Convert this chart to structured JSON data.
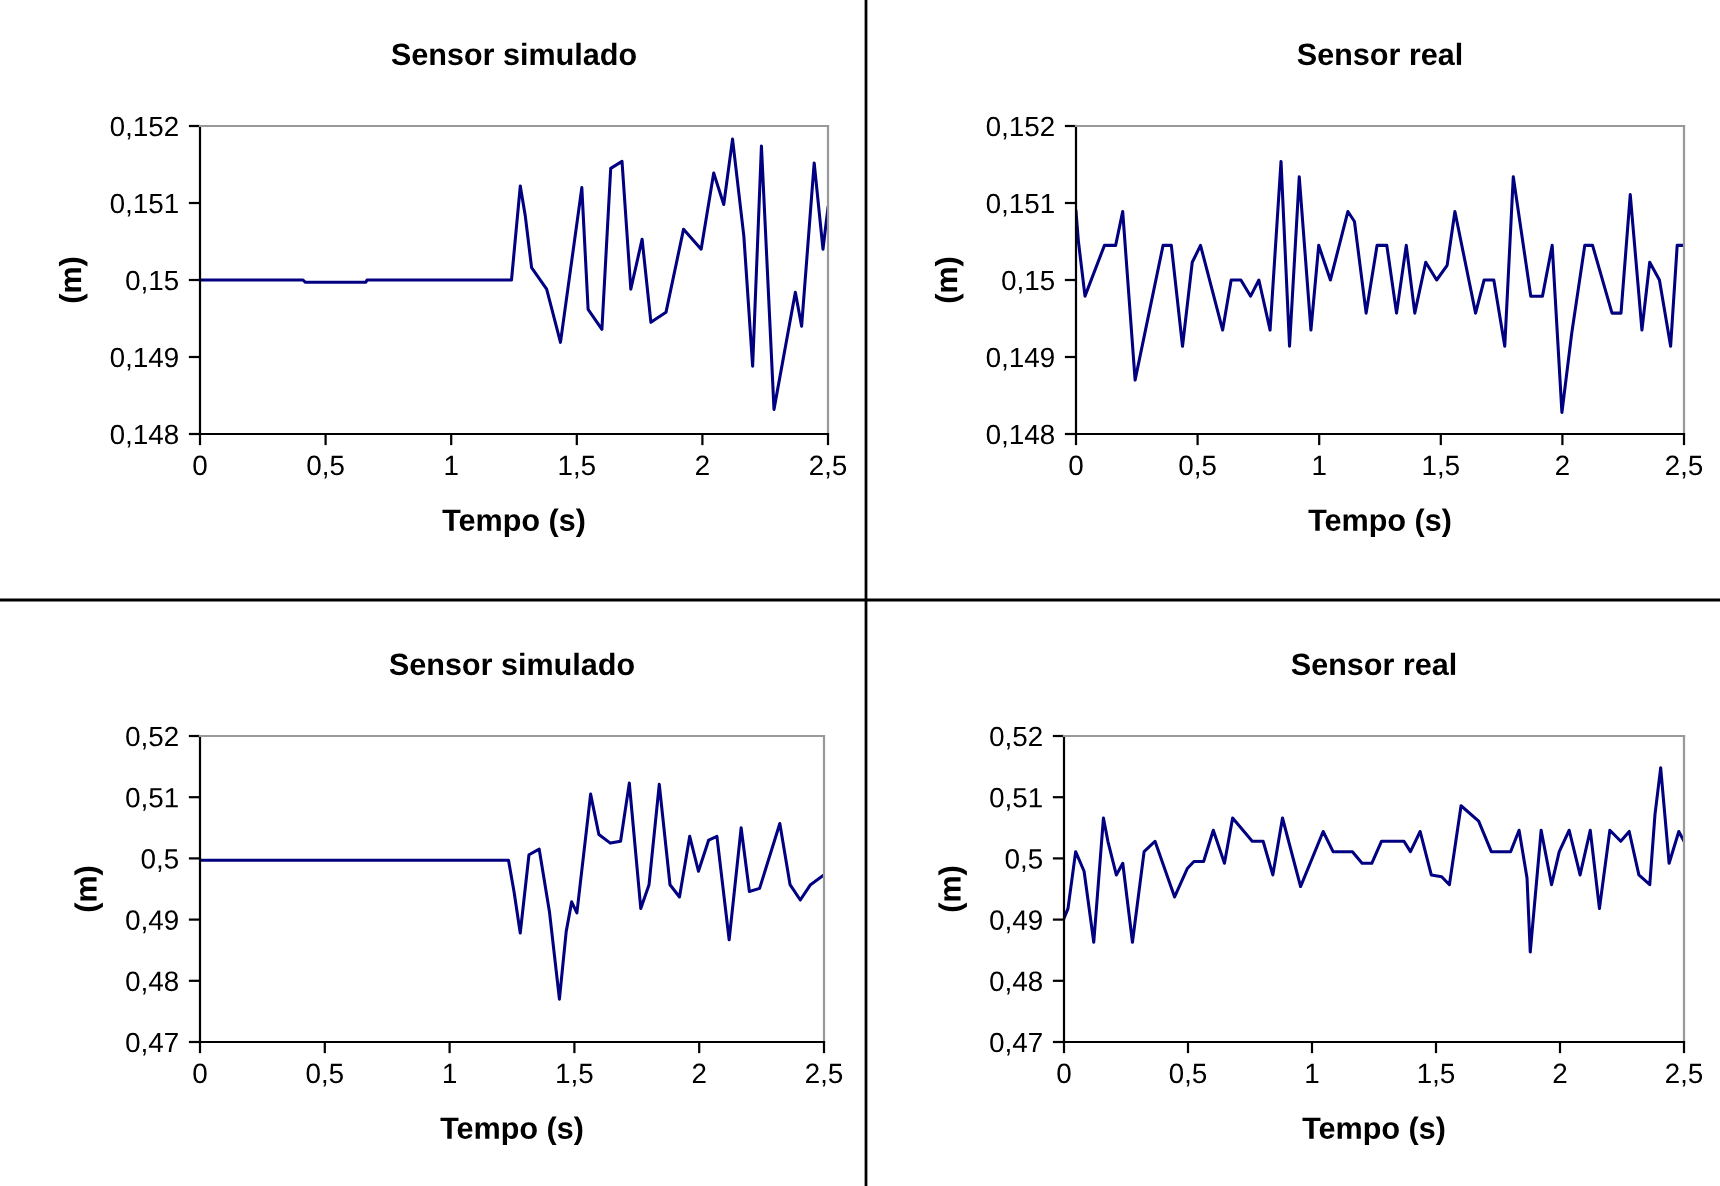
{
  "chart_data": [
    {
      "type": "line",
      "title": "Sensor simulado",
      "xlabel": "Tempo (s)",
      "ylabel": "(m)",
      "color": "#000080",
      "x": [
        0,
        0.41,
        0.42,
        0.66,
        0.665,
        1.24,
        1.275,
        1.295,
        1.32,
        1.38,
        1.435,
        1.52,
        1.545,
        1.6,
        1.635,
        1.68,
        1.715,
        1.76,
        1.795,
        1.855,
        1.925,
        1.995,
        2.045,
        2.085,
        2.12,
        2.165,
        2.2,
        2.235,
        2.285,
        2.37,
        2.395,
        2.445,
        2.48,
        2.5
      ],
      "values": [
        0.15,
        0.15,
        0.14997,
        0.14997,
        0.15,
        0.15,
        0.15122,
        0.15083,
        0.15016,
        0.14988,
        0.14919,
        0.1512,
        0.14962,
        0.14936,
        0.15145,
        0.15154,
        0.14988,
        0.15053,
        0.14945,
        0.14958,
        0.15066,
        0.1504,
        0.15139,
        0.15098,
        0.15183,
        0.15057,
        0.14888,
        0.15174,
        0.14832,
        0.14984,
        0.1494,
        0.15152,
        0.1504,
        0.15094
      ],
      "xlim": [
        0,
        2.5
      ],
      "ylim": [
        0.148,
        0.152
      ],
      "xticks": [
        0,
        {
          "value": 0.5,
          "label": "0,5"
        },
        1,
        {
          "value": 1.5,
          "label": "1,5"
        },
        2,
        {
          "value": 2.5,
          "label": "2,5"
        }
      ],
      "yticks": [
        {
          "value": 0.148,
          "label": "0,148"
        },
        {
          "value": 0.149,
          "label": "0,149"
        },
        {
          "value": 0.15,
          "label": "0,15"
        },
        {
          "value": 0.151,
          "label": "0,151"
        },
        {
          "value": 0.152,
          "label": "0,152"
        }
      ]
    },
    {
      "type": "line",
      "title": "Sensor real",
      "xlabel": "Tempo (s)",
      "ylabel": "(m)",
      "color": "#000080",
      "x": [
        0,
        0.01,
        0.037,
        0.117,
        0.163,
        0.192,
        0.243,
        0.358,
        0.392,
        0.438,
        0.478,
        0.512,
        0.603,
        0.638,
        0.678,
        0.718,
        0.752,
        0.798,
        0.843,
        0.878,
        0.918,
        0.966,
        0.998,
        1.046,
        1.118,
        1.145,
        1.193,
        1.238,
        1.278,
        1.318,
        1.358,
        1.393,
        1.438,
        1.483,
        1.526,
        1.558,
        1.643,
        1.678,
        1.718,
        1.763,
        1.798,
        1.87,
        1.918,
        1.958,
        1.998,
        2.038,
        2.092,
        2.124,
        2.204,
        2.241,
        2.279,
        2.327,
        2.359,
        2.399,
        2.445,
        2.472,
        2.5
      ],
      "values": [
        0.15089,
        0.1505,
        0.14979,
        0.15045,
        0.15045,
        0.15089,
        0.1487,
        0.15045,
        0.15045,
        0.14914,
        0.15023,
        0.15045,
        0.14935,
        0.15,
        0.15,
        0.14979,
        0.15,
        0.14935,
        0.15154,
        0.14914,
        0.15134,
        0.14935,
        0.15045,
        0.15,
        0.15089,
        0.15076,
        0.14957,
        0.15045,
        0.15045,
        0.14957,
        0.15045,
        0.14957,
        0.15023,
        0.15,
        0.15019,
        0.15089,
        0.14957,
        0.15,
        0.15,
        0.14914,
        0.15134,
        0.14979,
        0.14979,
        0.15045,
        0.14828,
        0.1493,
        0.15045,
        0.15045,
        0.14957,
        0.14957,
        0.15111,
        0.14935,
        0.15023,
        0.15,
        0.14914,
        0.15045,
        0.15045
      ],
      "xlim": [
        0,
        2.5
      ],
      "ylim": [
        0.148,
        0.152
      ],
      "xticks": [
        0,
        {
          "value": 0.5,
          "label": "0,5"
        },
        1,
        {
          "value": 1.5,
          "label": "1,5"
        },
        2,
        {
          "value": 2.5,
          "label": "2,5"
        }
      ],
      "yticks": [
        {
          "value": 0.148,
          "label": "0,148"
        },
        {
          "value": 0.149,
          "label": "0,149"
        },
        {
          "value": 0.15,
          "label": "0,15"
        },
        {
          "value": 0.151,
          "label": "0,151"
        },
        {
          "value": 0.152,
          "label": "0,152"
        }
      ]
    },
    {
      "type": "line",
      "title": "Sensor simulado",
      "xlabel": "Tempo (s)",
      "ylabel": "(m)",
      "color": "#000080",
      "x": [
        0,
        1.236,
        1.258,
        1.283,
        1.318,
        1.359,
        1.4,
        1.44,
        1.467,
        1.489,
        1.51,
        1.565,
        1.598,
        1.644,
        1.685,
        1.72,
        1.766,
        1.799,
        1.84,
        1.883,
        1.921,
        1.962,
        1.997,
        2.038,
        2.071,
        2.12,
        2.168,
        2.201,
        2.242,
        2.323,
        2.364,
        2.405,
        2.446,
        2.5
      ],
      "values": [
        0.4997,
        0.4997,
        0.4946,
        0.4878,
        0.5006,
        0.5015,
        0.4913,
        0.477,
        0.488,
        0.4929,
        0.4911,
        0.5105,
        0.5039,
        0.5025,
        0.5028,
        0.5123,
        0.4918,
        0.4957,
        0.5121,
        0.4957,
        0.4937,
        0.5036,
        0.4979,
        0.503,
        0.5036,
        0.4867,
        0.505,
        0.4946,
        0.4951,
        0.5057,
        0.4957,
        0.4932,
        0.4957,
        0.4973
      ],
      "xlim": [
        0,
        2.5
      ],
      "ylim": [
        0.47,
        0.52
      ],
      "xticks": [
        0,
        {
          "value": 0.5,
          "label": "0,5"
        },
        1,
        {
          "value": 1.5,
          "label": "1,5"
        },
        2,
        {
          "value": 2.5,
          "label": "2,5"
        }
      ],
      "yticks": [
        {
          "value": 0.47,
          "label": "0,47"
        },
        {
          "value": 0.48,
          "label": "0,48"
        },
        {
          "value": 0.49,
          "label": "0,49"
        },
        {
          "value": 0.5,
          "label": "0,5"
        },
        {
          "value": 0.51,
          "label": "0,51"
        },
        {
          "value": 0.52,
          "label": "0,52"
        }
      ]
    },
    {
      "type": "line",
      "title": "Sensor real",
      "xlabel": "Tempo (s)",
      "ylabel": "(m)",
      "color": "#000080",
      "x": [
        0,
        0.016,
        0.047,
        0.081,
        0.12,
        0.159,
        0.177,
        0.211,
        0.237,
        0.276,
        0.323,
        0.367,
        0.446,
        0.498,
        0.524,
        0.563,
        0.602,
        0.647,
        0.68,
        0.759,
        0.803,
        0.842,
        0.881,
        0.954,
        1.045,
        1.085,
        1.163,
        1.202,
        1.241,
        1.28,
        1.371,
        1.397,
        1.436,
        1.481,
        1.523,
        1.554,
        1.601,
        1.672,
        1.723,
        1.801,
        1.835,
        1.867,
        1.88,
        1.924,
        1.966,
        1.997,
        2.037,
        2.081,
        2.122,
        2.159,
        2.201,
        2.245,
        2.279,
        2.318,
        2.362,
        2.383,
        2.406,
        2.44,
        2.479,
        2.5
      ],
      "values": [
        0.4902,
        0.4918,
        0.5011,
        0.4979,
        0.4863,
        0.5066,
        0.5028,
        0.4973,
        0.4992,
        0.4863,
        0.5011,
        0.5028,
        0.4937,
        0.4984,
        0.4995,
        0.4995,
        0.5046,
        0.4992,
        0.5066,
        0.5028,
        0.5028,
        0.4973,
        0.5066,
        0.4954,
        0.5044,
        0.5011,
        0.5011,
        0.4992,
        0.4992,
        0.5028,
        0.5028,
        0.5011,
        0.5044,
        0.4973,
        0.497,
        0.4957,
        0.5086,
        0.5061,
        0.5011,
        0.5011,
        0.5046,
        0.4968,
        0.4847,
        0.5046,
        0.4957,
        0.5011,
        0.5046,
        0.4973,
        0.5046,
        0.4918,
        0.5046,
        0.5028,
        0.5044,
        0.4973,
        0.4957,
        0.5072,
        0.5148,
        0.4992,
        0.5044,
        0.5028
      ],
      "xlim": [
        0,
        2.5
      ],
      "ylim": [
        0.47,
        0.52
      ],
      "xticks": [
        0,
        {
          "value": 0.5,
          "label": "0,5"
        },
        1,
        {
          "value": 1.5,
          "label": "1,5"
        },
        2,
        {
          "value": 2.5,
          "label": "2,5"
        }
      ],
      "yticks": [
        {
          "value": 0.47,
          "label": "0,47"
        },
        {
          "value": 0.48,
          "label": "0,48"
        },
        {
          "value": 0.49,
          "label": "0,49"
        },
        {
          "value": 0.5,
          "label": "0,5"
        },
        {
          "value": 0.51,
          "label": "0,51"
        },
        {
          "value": 0.52,
          "label": "0,52"
        }
      ]
    }
  ]
}
